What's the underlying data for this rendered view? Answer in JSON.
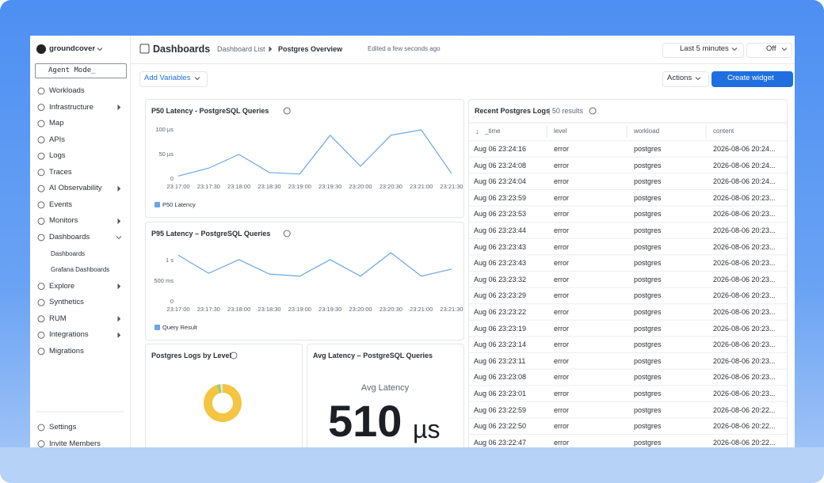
{
  "app": {
    "brand": "groundcover",
    "agent_mode": "Agent Mode_",
    "nav": [
      {
        "label": "Workloads"
      },
      {
        "label": "Infrastructure",
        "expandable": true
      },
      {
        "label": "Map"
      },
      {
        "label": "APIs"
      },
      {
        "label": "Logs"
      },
      {
        "label": "Traces"
      },
      {
        "label": "AI Observability",
        "expandable": true
      },
      {
        "label": "Events"
      },
      {
        "label": "Monitors",
        "expandable": true
      },
      {
        "label": "Dashboards",
        "expandable": true,
        "children": [
          "Dashboards",
          "Grafana Dashboards"
        ]
      },
      {
        "label": "Explore",
        "expandable": true
      },
      {
        "label": "Synthetics"
      },
      {
        "label": "RUM",
        "expandable": true
      },
      {
        "label": "Integrations",
        "expandable": true
      },
      {
        "label": "Migrations"
      }
    ],
    "footer_nav": [
      "Settings",
      "Invite Members"
    ]
  },
  "header": {
    "title": "Dashboards",
    "breadcrumb": [
      "Dashboard List",
      "Postgres Overview"
    ],
    "status": "Edited a few seconds ago",
    "time_range": "Last 5 minutes",
    "refresh": "Off"
  },
  "toolbar": {
    "variables": "Add Variables",
    "actions": "Actions",
    "create": "Create widget"
  },
  "widgets": {
    "p50": {
      "type": "line",
      "title": "P50 Latency - PostgreSQL Queries",
      "categories": [
        "23:17:00",
        "23:17:30",
        "23:18:00",
        "23:18:30",
        "23:19:00",
        "23:19:30",
        "23:20:00",
        "23:20:30",
        "23:21:00",
        "23:21:30"
      ],
      "series": [
        {
          "name": "P50 Latency",
          "color": "#6aa6e6",
          "values": [
            6,
            22,
            50,
            13,
            10,
            89,
            26,
            89,
            100,
            11
          ]
        }
      ],
      "ylim": [
        0,
        100
      ],
      "yticks": [
        0,
        {
          "value": 50,
          "label": "50 µs"
        },
        {
          "value": 100,
          "label": "100 µs"
        }
      ]
    },
    "p95": {
      "type": "line",
      "title": "P95 Latency – PostgreSQL Queries",
      "categories": [
        "23:17:00",
        "23:17:30",
        "23:18:00",
        "23:18:30",
        "23:19:00",
        "23:19:30",
        "23:20:00",
        "23:20:30",
        "23:21:00",
        "23:21:30"
      ],
      "series": [
        {
          "name": "Query Result",
          "color": "#6aa6e6",
          "values": [
            1130,
            690,
            1020,
            670,
            620,
            1020,
            620,
            1190,
            620,
            790
          ]
        }
      ],
      "ylim": [
        0,
        1200
      ],
      "yticks": [
        0,
        {
          "value": 500,
          "label": "500 ms"
        },
        {
          "value": 1000,
          "label": "1 s"
        }
      ]
    },
    "logs_by_level": {
      "type": "pie",
      "title": "Postgres Logs by Level",
      "values": [
        95,
        3,
        2
      ],
      "colors": [
        "#f4c542",
        "#9ccc65",
        "#e3e3e3"
      ]
    },
    "avg_latency": {
      "title": "Avg Latency – PostgreSQL Queries",
      "label": "Avg Latency",
      "value": 510,
      "unit": "µs"
    },
    "logs": {
      "title": "Recent Postgres Logs",
      "count": "| 50 results",
      "columns": [
        "_time",
        "level",
        "workload",
        "content"
      ],
      "rows": [
        [
          "Aug 06 23:24:16",
          "error",
          "postgres",
          "2026-08-06 20:24..."
        ],
        [
          "Aug 06 23:24:08",
          "error",
          "postgres",
          "2026-08-06 20:24..."
        ],
        [
          "Aug 06 23:24:04",
          "error",
          "postgres",
          "2026-08-06 20:24..."
        ],
        [
          "Aug 06 23:23:59",
          "error",
          "postgres",
          "2026-08-06 20:23..."
        ],
        [
          "Aug 06 23:23:53",
          "error",
          "postgres",
          "2026-08-06 20:23..."
        ],
        [
          "Aug 06 23:23:44",
          "error",
          "postgres",
          "2026-08-06 20:23..."
        ],
        [
          "Aug 06 23:23:43",
          "error",
          "postgres",
          "2026-08-06 20:23..."
        ],
        [
          "Aug 06 23:23:43",
          "error",
          "postgres",
          "2026-08-06 20:23..."
        ],
        [
          "Aug 06 23:23:32",
          "error",
          "postgres",
          "2026-08-06 20:23..."
        ],
        [
          "Aug 06 23:23:29",
          "error",
          "postgres",
          "2026-08-06 20:23..."
        ],
        [
          "Aug 06 23:23:22",
          "error",
          "postgres",
          "2026-08-06 20:23..."
        ],
        [
          "Aug 06 23:23:19",
          "error",
          "postgres",
          "2026-08-06 20:23..."
        ],
        [
          "Aug 06 23:23:14",
          "error",
          "postgres",
          "2026-08-06 20:23..."
        ],
        [
          "Aug 06 23:23:11",
          "error",
          "postgres",
          "2026-08-06 20:23..."
        ],
        [
          "Aug 06 23:23:08",
          "error",
          "postgres",
          "2026-08-06 20:23..."
        ],
        [
          "Aug 06 23:23:01",
          "error",
          "postgres",
          "2026-08-06 20:23..."
        ],
        [
          "Aug 06 23:22:59",
          "error",
          "postgres",
          "2026-08-06 20:22..."
        ],
        [
          "Aug 06 23:22:50",
          "error",
          "postgres",
          "2026-08-06 20:22..."
        ],
        [
          "Aug 06 23:22:47",
          "error",
          "postgres",
          "2026-08-06 20:22..."
        ]
      ]
    }
  }
}
